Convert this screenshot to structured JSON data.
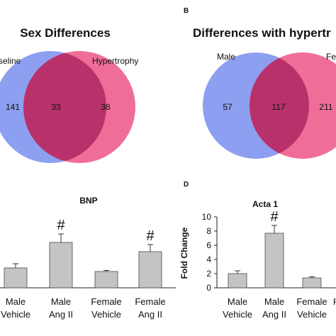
{
  "panel_labels": {
    "b": "B",
    "d": "D"
  },
  "colors": {
    "blue": "#8d9ff0",
    "pink": "#ef6e98",
    "overlap": "#b8316b",
    "bar": "#c4c4c4",
    "bar_edge": "#4a4a4a"
  },
  "chart_data": [
    {
      "type": "venn",
      "title": "Sex Differences",
      "sets": [
        "seline",
        "Hypertrophy"
      ],
      "counts": {
        "left_only": "141",
        "both": "33",
        "right_only": "38"
      }
    },
    {
      "type": "venn",
      "title": "Differences with hypertr",
      "sets": [
        "Male",
        "Fe"
      ],
      "counts": {
        "left_only": "57",
        "both": "117",
        "right_only": "211"
      }
    },
    {
      "type": "bar",
      "title": "BNP",
      "categories": [
        "Male\nVehicle",
        "Male\nAng II",
        "Female\nVehicle",
        "Female\nAng II"
      ],
      "values": [
        2.8,
        6.4,
        2.3,
        5.1
      ],
      "errors": [
        0.6,
        1.2,
        0.15,
        1.0
      ],
      "annotations": [
        "",
        "#",
        "",
        "#"
      ],
      "ylim": [
        0,
        10
      ]
    },
    {
      "type": "bar",
      "title": "Acta 1",
      "ylabel": "Fold Change",
      "categories": [
        "Male\nVehicle",
        "Male\nAng II",
        "Female\nVehicle"
      ],
      "values": [
        2.0,
        7.7,
        1.4
      ],
      "errors": [
        0.4,
        1.1,
        0.15
      ],
      "annotations": [
        "",
        "#",
        ""
      ],
      "yticks": [
        "0",
        "2",
        "4",
        "6",
        "8",
        "10"
      ],
      "ylim": [
        0,
        10
      ],
      "extra_label": "F"
    }
  ]
}
